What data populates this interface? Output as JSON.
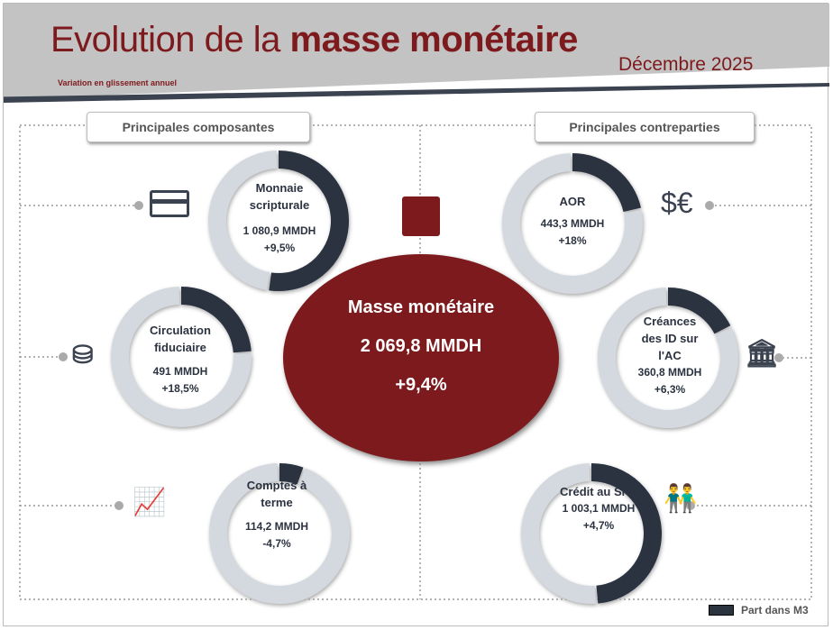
{
  "header": {
    "title_light": "Evolution de la ",
    "title_bold": "masse monétaire",
    "date": "Décembre 2025",
    "subtitle": "Variation en glissement annuel"
  },
  "tabs": {
    "left": "Principales composantes",
    "right": "Principales contreparties"
  },
  "legend": {
    "label": "Part dans M3"
  },
  "colors": {
    "share": "#2b3240",
    "rest": "#d4d8df",
    "accent": "#7d1a1d"
  },
  "chart_data": {
    "type": "pie",
    "total": {
      "name": "Masse monétaire",
      "value": "2 069,8 MMDH",
      "change": "+9,4%"
    },
    "items": [
      {
        "name": "Monnaie scripturale",
        "value": "1 080,9 MMDH",
        "change": "+9,5%",
        "share": 52.2,
        "icon": "credit-card-icon"
      },
      {
        "name": "Circulation fiduciaire",
        "value": "491 MMDH",
        "change": "+18,5%",
        "share": 23.7,
        "icon": "coins-icon"
      },
      {
        "name": "Comptes à terme",
        "value": "114,2 MMDH",
        "change": "-4,7%",
        "share": 5.5,
        "icon": "presentation-board-icon"
      },
      {
        "name": "AOR",
        "value": "443,3 MMDH",
        "change": "+18%",
        "share": 21.4,
        "icon": "currency-icon"
      },
      {
        "name": "Créances des ID sur l'AC",
        "value": "360,8 MMDH",
        "change": "+6,3%",
        "share": 17.4,
        "icon": "bank-icon"
      },
      {
        "name": "Crédit au SNF",
        "value": "1 003,1 MMDH",
        "change": "+4,7%",
        "share": 48.5,
        "icon": "people-icon"
      }
    ]
  }
}
